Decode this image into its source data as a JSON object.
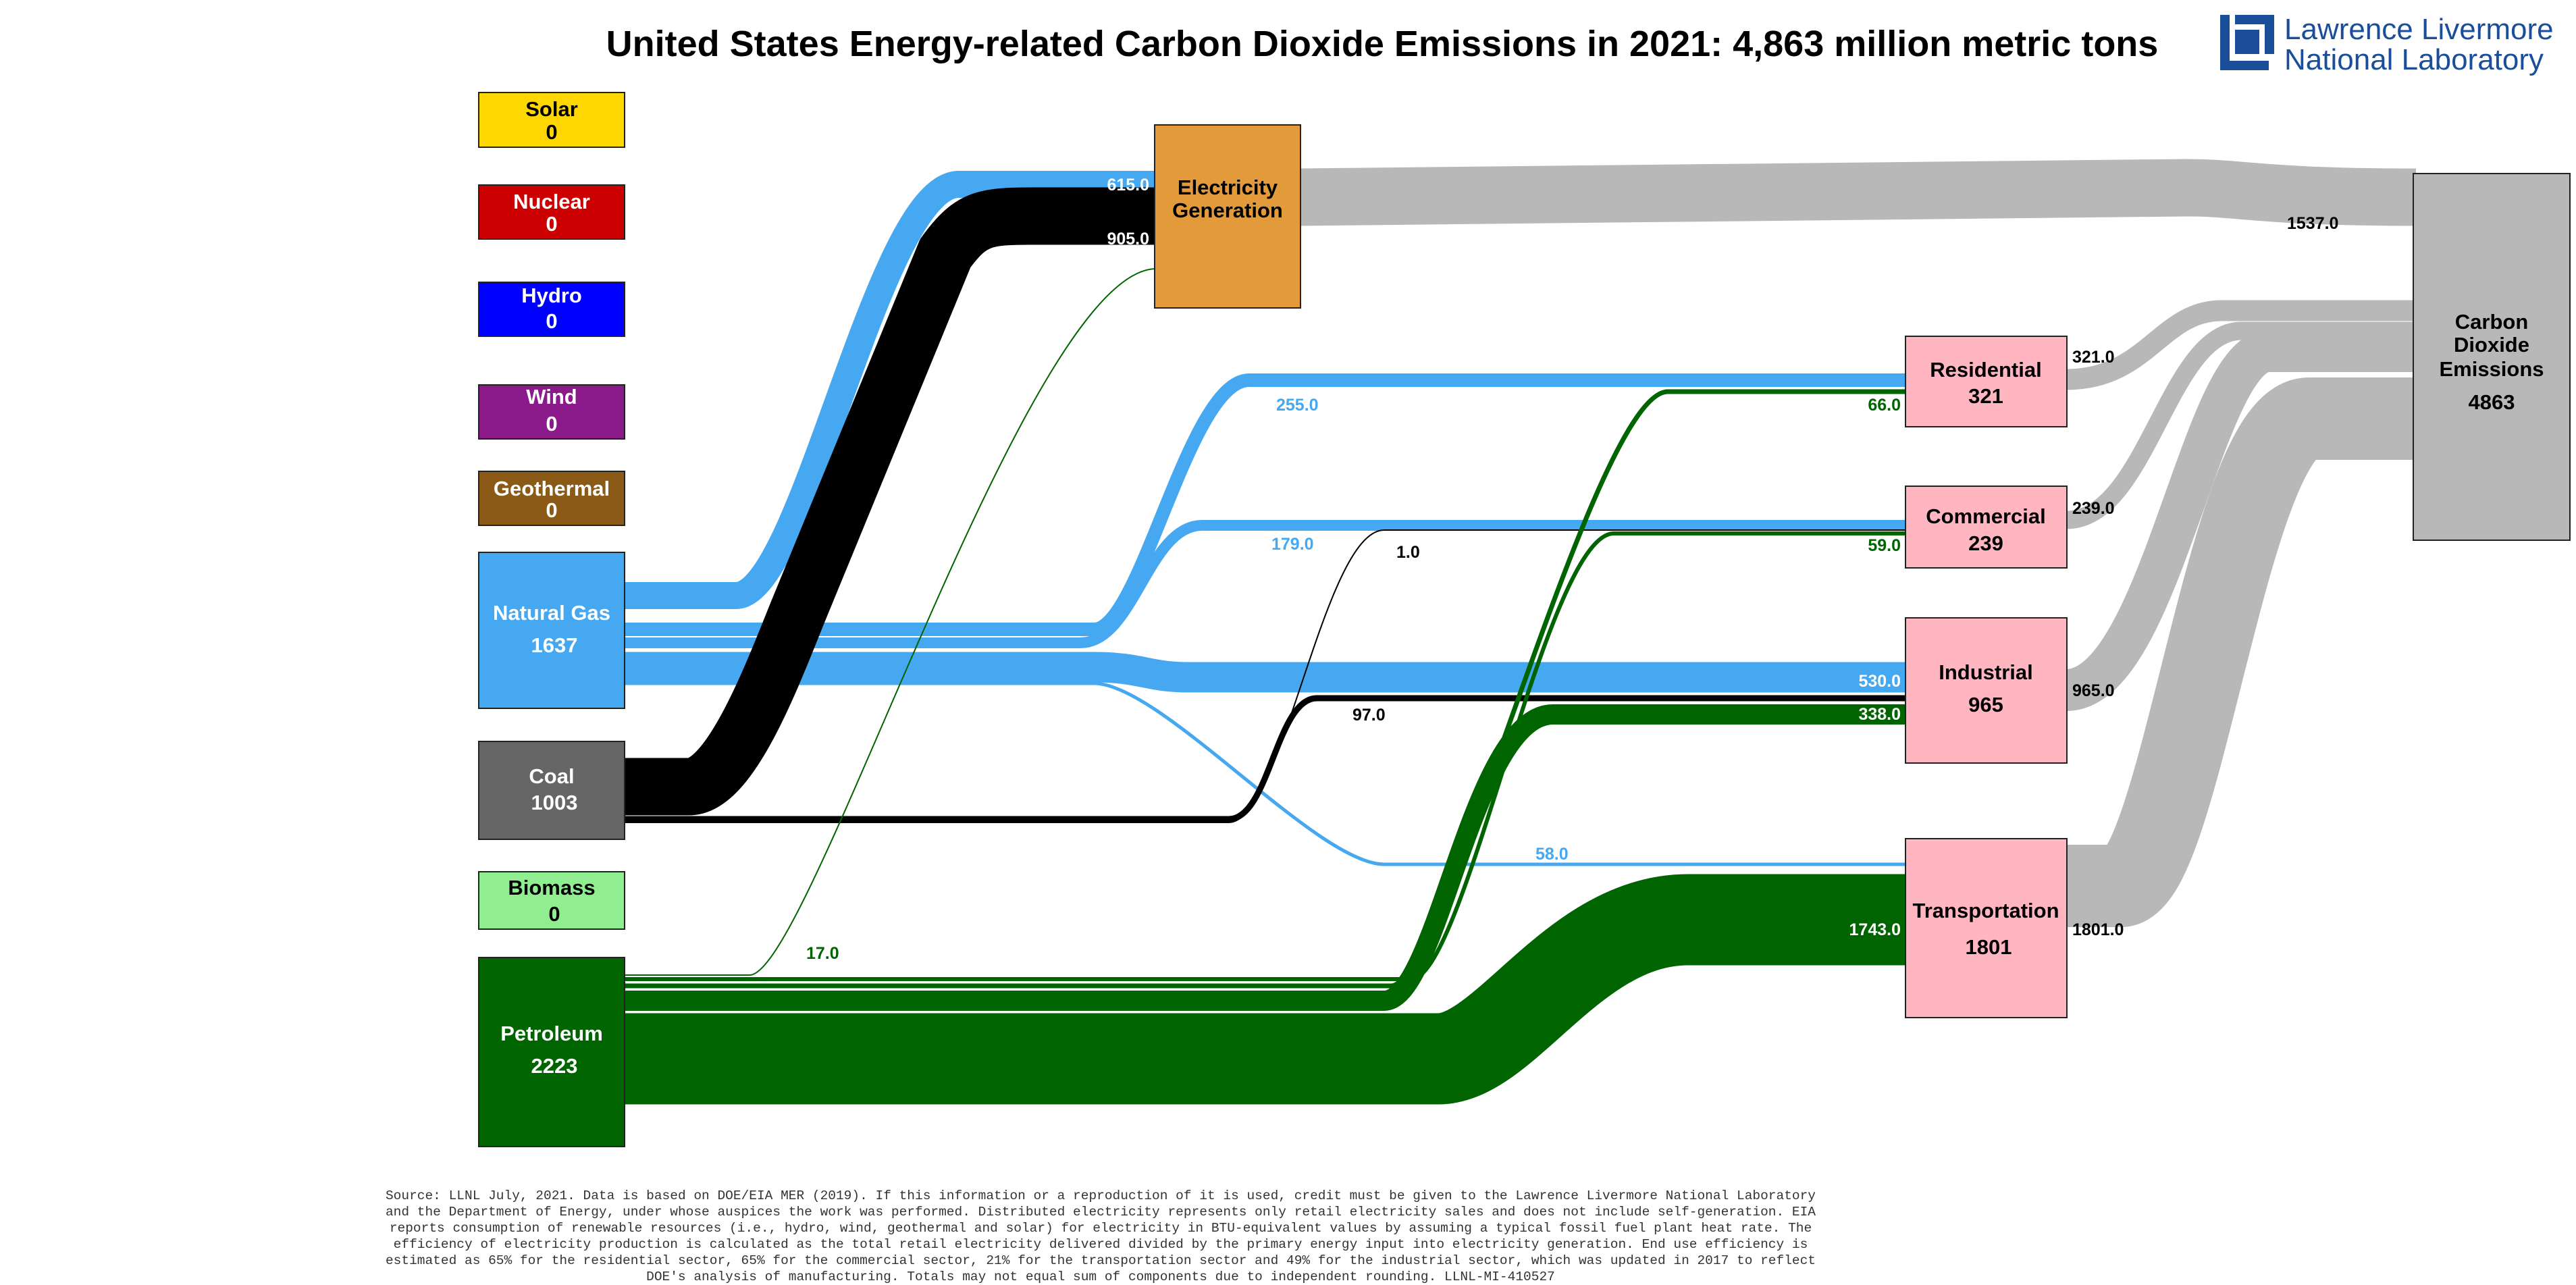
{
  "title": "United States Energy-related Carbon Dioxide Emissions in 2021: 4,863 million metric tons",
  "logo": {
    "line1": "Lawrence Livermore",
    "line2": "National Laboratory"
  },
  "colors": {
    "solar": "#FFD700",
    "nuclear": "#CC0000",
    "hydro": "#0000FF",
    "wind": "#8B1A8B",
    "geothermal": "#8B5A17",
    "natural_gas": "#45A8F0",
    "coal": "#000000",
    "coal_box": "#666666",
    "biomass": "#90EE90",
    "petroleum": "#006400",
    "electricity_generation": "#E39A3A",
    "end_use": "#FFB6C1",
    "emissions": "#B8B8B8",
    "logo": "#1a4e9a"
  },
  "sources": [
    {
      "id": "solar",
      "name": "Solar",
      "value": "0"
    },
    {
      "id": "nuclear",
      "name": "Nuclear",
      "value": "0"
    },
    {
      "id": "hydro",
      "name": "Hydro",
      "value": "0"
    },
    {
      "id": "wind",
      "name": "Wind",
      "value": "0"
    },
    {
      "id": "geothermal",
      "name": "Geothermal",
      "value": "0"
    },
    {
      "id": "natural-gas",
      "name": "Natural Gas",
      "value": "1637"
    },
    {
      "id": "coal",
      "name": "Coal",
      "value": "1003"
    },
    {
      "id": "biomass",
      "name": "Biomass",
      "value": "0"
    },
    {
      "id": "petroleum",
      "name": "Petroleum",
      "value": "2223"
    }
  ],
  "electricity_generation": {
    "line1": "Electricity",
    "line2": "Generation"
  },
  "sectors": [
    {
      "id": "residential",
      "name": "Residential",
      "value": "321"
    },
    {
      "id": "commercial",
      "name": "Commercial",
      "value": "239"
    },
    {
      "id": "industrial",
      "name": "Industrial",
      "value": "965"
    },
    {
      "id": "transportation",
      "name": "Transportation",
      "value": "1801"
    }
  ],
  "emissions": {
    "line1": "Carbon",
    "line2": "Dioxide",
    "line3": "Emissions",
    "value": "4863"
  },
  "flows": [
    {
      "id": "gas-electricity",
      "from": "Natural Gas",
      "to": "Electricity Generation",
      "value": 615.0,
      "label": "615.0",
      "color": "natural_gas"
    },
    {
      "id": "coal-electricity",
      "from": "Coal",
      "to": "Electricity Generation",
      "value": 905.0,
      "label": "905.0",
      "color": "coal"
    },
    {
      "id": "petroleum-electricity",
      "from": "Petroleum",
      "to": "Electricity Generation",
      "value": 17.0,
      "label": "17.0",
      "color": "petroleum"
    },
    {
      "id": "gas-residential",
      "from": "Natural Gas",
      "to": "Residential",
      "value": 255.0,
      "label": "255.0",
      "color": "natural_gas"
    },
    {
      "id": "gas-commercial",
      "from": "Natural Gas",
      "to": "Commercial",
      "value": 179.0,
      "label": "179.0",
      "color": "natural_gas"
    },
    {
      "id": "gas-industrial",
      "from": "Natural Gas",
      "to": "Industrial",
      "value": 530.0,
      "label": "530.0",
      "color": "natural_gas"
    },
    {
      "id": "gas-transportation",
      "from": "Natural Gas",
      "to": "Transportation",
      "value": 58.0,
      "label": "58.0",
      "color": "natural_gas"
    },
    {
      "id": "coal-commercial",
      "from": "Coal",
      "to": "Commercial",
      "value": 1.0,
      "label": "1.0",
      "color": "coal"
    },
    {
      "id": "coal-industrial",
      "from": "Coal",
      "to": "Industrial",
      "value": 97.0,
      "label": "97.0",
      "color": "coal"
    },
    {
      "id": "petroleum-residential",
      "from": "Petroleum",
      "to": "Residential",
      "value": 66.0,
      "label": "66.0",
      "color": "petroleum"
    },
    {
      "id": "petroleum-commercial",
      "from": "Petroleum",
      "to": "Commercial",
      "value": 59.0,
      "label": "59.0",
      "color": "petroleum"
    },
    {
      "id": "petroleum-industrial",
      "from": "Petroleum",
      "to": "Industrial",
      "value": 338.0,
      "label": "338.0",
      "color": "petroleum"
    },
    {
      "id": "petroleum-transportation",
      "from": "Petroleum",
      "to": "Transportation",
      "value": 1743.0,
      "label": "1743.0",
      "color": "petroleum"
    },
    {
      "id": "electricity-emissions",
      "from": "Electricity Generation",
      "to": "Carbon Dioxide Emissions",
      "value": 1537.0,
      "label": "1537.0",
      "color": "emissions"
    },
    {
      "id": "residential-emissions",
      "from": "Residential",
      "to": "Carbon Dioxide Emissions",
      "value": 321.0,
      "label": "321.0",
      "color": "emissions"
    },
    {
      "id": "commercial-emissions",
      "from": "Commercial",
      "to": "Carbon Dioxide Emissions",
      "value": 239.0,
      "label": "239.0",
      "color": "emissions"
    },
    {
      "id": "industrial-emissions",
      "from": "Industrial",
      "to": "Carbon Dioxide Emissions",
      "value": 965.0,
      "label": "965.0",
      "color": "emissions"
    },
    {
      "id": "transportation-emissions",
      "from": "Transportation",
      "to": "Carbon Dioxide Emissions",
      "value": 1801.0,
      "label": "1801.0",
      "color": "emissions"
    }
  ],
  "source_note": "Source: LLNL July, 2021. Data is based on DOE/EIA MER (2019). If this information or a reproduction of it is used, credit must be given to the Lawrence Livermore National Laboratory and the Department of Energy, under whose auspices the work was performed. Distributed electricity represents only retail electricity sales and does not include self-generation.  EIA reports consumption of renewable resources (i.e., hydro, wind, geothermal and solar) for electricity in BTU-equivalent values by assuming a typical fossil fuel plant heat rate.  The efficiency of electricity production is calculated as the total retail electricity delivered divided by the primary energy input into electricity generation.  End use efficiency is estimated as 65% for the residential sector, 65% for the commercial sector, 21% for the transportation sector and 49% for the industrial sector, which was updated in 2017 to reflect DOE's analysis of manufacturing.  Totals may not equal sum of components due to independent rounding. LLNL-MI-410527"
}
